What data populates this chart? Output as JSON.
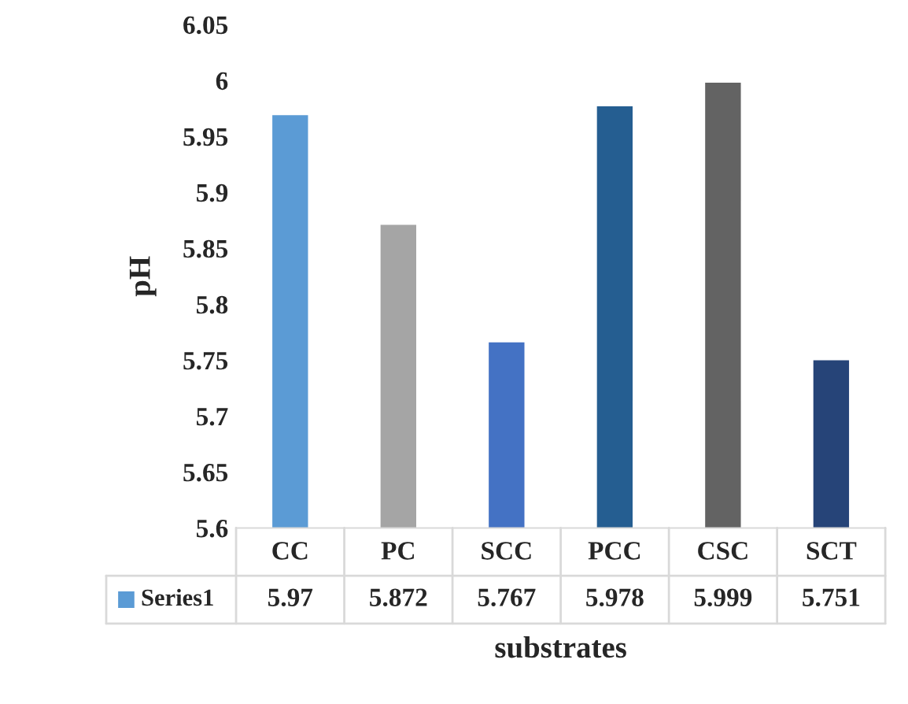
{
  "chart_data": {
    "type": "bar",
    "xlabel": "substrates",
    "ylabel": "pH",
    "categories": [
      "CC",
      "PC",
      "SCC",
      "PCC",
      "CSC",
      "SCT"
    ],
    "series": [
      {
        "name": "Series1",
        "color": "#5b9bd5",
        "colors": [
          "#5b9bd5",
          "#a5a5a5",
          "#4472c4",
          "#255e91",
          "#636363",
          "#264478"
        ],
        "values": [
          5.97,
          5.872,
          5.767,
          5.978,
          5.999,
          5.751
        ]
      }
    ],
    "ylim": [
      5.6,
      6.05
    ],
    "yticks": [
      5.6,
      5.65,
      5.7,
      5.75,
      5.8,
      5.85,
      5.9,
      5.95,
      6,
      6.05
    ],
    "grid": false,
    "legend": "bottom",
    "data_labels": true
  }
}
